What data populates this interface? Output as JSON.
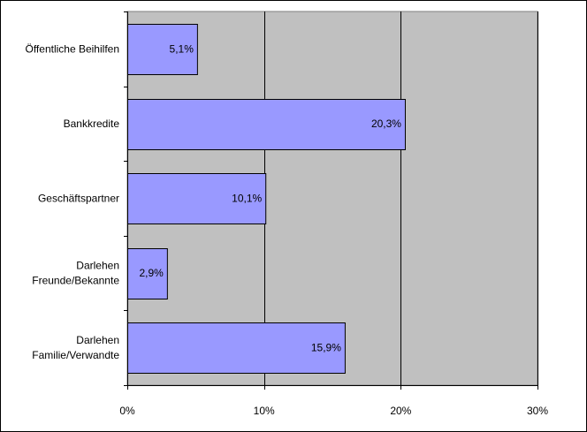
{
  "chart_data": {
    "type": "bar",
    "orientation": "horizontal",
    "categories": [
      [
        "Öffentliche Beihilfen"
      ],
      [
        "Bankkredite"
      ],
      [
        "Geschäftspartner"
      ],
      [
        "Darlehen",
        "Freunde/Bekannte"
      ],
      [
        "Darlehen",
        "Familie/Verwandte"
      ]
    ],
    "values": [
      5.1,
      20.3,
      10.1,
      2.9,
      15.9
    ],
    "data_labels": [
      "5,1%",
      "20,3%",
      "10,1%",
      "2,9%",
      "15,9%"
    ],
    "xlim": [
      0,
      30
    ],
    "xticks": [
      0,
      10,
      20,
      30
    ],
    "xtick_labels": [
      "0%",
      "10%",
      "20%",
      "30%"
    ],
    "gridlines": "vertical, major",
    "legend": "none",
    "colors": {
      "plot_background": "#c0c0c0",
      "bar_fill": "#9999ff",
      "bar_border": "#000000",
      "gridline": "#000000"
    }
  }
}
